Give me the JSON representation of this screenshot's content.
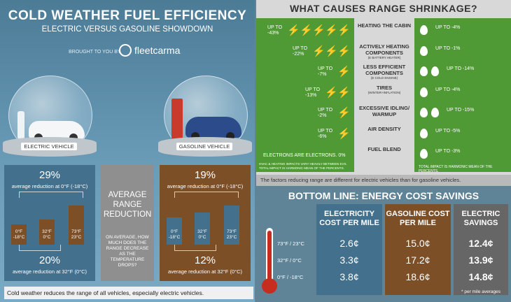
{
  "header": {
    "title": "COLD WEATHER FUEL EFFICIENCY",
    "subtitle": "ELECTRIC VERSUS GASOLINE SHOWDOWN",
    "brought_by": "BROUGHT TO YOU BY",
    "brand": "fleetcarma"
  },
  "globes": {
    "electric_label": "ELECTRIC VEHICLE",
    "gasoline_label": "GASOLINE VEHICLE"
  },
  "electric": {
    "pct_0f": "29%",
    "cap_0f": "average reduction at 0°F (-18°C)",
    "pct_32f": "20%",
    "cap_32f": "average reduction at 32°F (0°C)",
    "bars": [
      {
        "label": "0°F\n-18°C",
        "level": 0.42
      },
      {
        "label": "32°F\n0°C",
        "level": 0.52
      },
      {
        "label": "73°F\n23°C",
        "level": 0.8
      }
    ]
  },
  "center": {
    "title": "AVERAGE RANGE REDUCTION",
    "question": "ON AVERAGE, HOW MUCH DOES THE RANGE DECREASE AS THE TEMPERATURE DROPS?"
  },
  "gasoline": {
    "pct_0f": "19%",
    "cap_0f": "average reduction at 0°F (-18°C)",
    "pct_32f": "12%",
    "cap_32f": "average reduction at 32°F (0°C)",
    "bars": [
      {
        "label": "0°F\n-18°C",
        "level": 0.55
      },
      {
        "label": "32°F\n0°C",
        "level": 0.66
      },
      {
        "label": "73°F\n23°C",
        "level": 0.8
      }
    ]
  },
  "left_footer": "Cold weather reduces the range of all vehicles, especially electric vehicles.",
  "causes": {
    "title": "WHAT CAUSES RANGE SHRINKAGE?",
    "rows": [
      {
        "factor": "HEATING THE CABIN",
        "sub": "",
        "ev": "UP TO -43%",
        "ev_bolts": 5,
        "gas": "UP TO -4%",
        "gas_drops": 1
      },
      {
        "factor": "ACTIVELY HEATING COMPONENTS",
        "sub": "(E BATTERY HEATER)",
        "ev": "UP TO -22%",
        "ev_bolts": 3,
        "gas": "UP TO -1%",
        "gas_drops": 1
      },
      {
        "factor": "LESS EFFICIENT COMPONENTS",
        "sub": "(E COLD ENGINE)",
        "ev": "UP TO -7%",
        "ev_bolts": 1,
        "gas": "UP TO -14%",
        "gas_drops": 2
      },
      {
        "factor": "TIRES",
        "sub": "(WINTER+INFLATION)",
        "ev": "UP TO -13%",
        "ev_bolts": 2,
        "gas": "UP TO -4%",
        "gas_drops": 1
      },
      {
        "factor": "EXCESSIVE IDLING/ WARMUP",
        "sub": "",
        "ev": "UP TO -2%",
        "ev_bolts": 1,
        "gas": "UP TO -15%",
        "gas_drops": 2
      },
      {
        "factor": "AIR DENSITY",
        "sub": "",
        "ev": "UP TO -6%",
        "ev_bolts": 1,
        "gas": "UP TO -5%",
        "gas_drops": 1
      },
      {
        "factor": "FUEL BLEND",
        "sub": "",
        "ev": "ELECTRONS ARE ELECTRONS. 0%",
        "ev_bolts": 0,
        "gas": "UP TO -3%",
        "gas_drops": 1
      }
    ],
    "ev_note": "HVAC & HEATING IMPACTS VARY HEAVILY BETWEEN EVS. TOTAL IMPACT IS HARMONIC MEAN OF THE PERCENTS.",
    "gas_note": "TOTAL IMPACT IS HARMONIC MEAN OF THE PERCENTS.",
    "summary": "The factors reducing range are different for electric vehicles than for gasoline vehicles."
  },
  "savings": {
    "title": "BOTTOM LINE: ENERGY COST SAVINGS",
    "headers": [
      "ELECTRICITY COST PER MILE",
      "GASOLINE COST PER MILE",
      "ELECTRIC SAVINGS"
    ],
    "rows": [
      {
        "temp": "73°F / 23°C",
        "elec": "2.6¢",
        "gas": "15.0¢",
        "save": "12.4¢"
      },
      {
        "temp": "32°F / 0°C",
        "elec": "3.3¢",
        "gas": "17.2¢",
        "save": "13.9¢"
      },
      {
        "temp": "0°F / -18°C",
        "elec": "3.8¢",
        "gas": "18.6¢",
        "save": "14.8¢"
      }
    ],
    "footnote": "* per mile averages"
  },
  "colors": {
    "blue": "#43708c",
    "brown": "#7d4f27",
    "green": "#4f9a34",
    "grey": "#8f8f8f"
  }
}
